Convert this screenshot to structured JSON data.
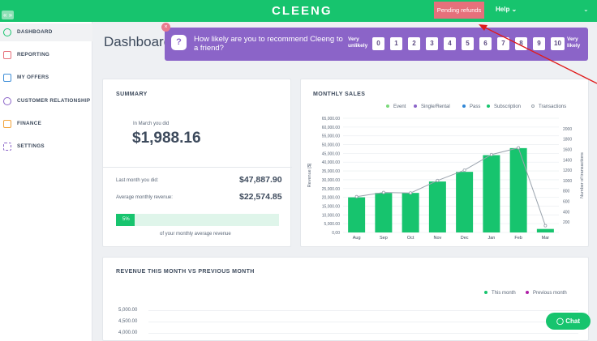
{
  "topbar": {
    "collapse_label": "« »",
    "logo": "CLEENG",
    "pending_label": "Pending refunds",
    "help_label": "Help ⌄",
    "chevron": "⌄"
  },
  "sidebar": {
    "items": [
      {
        "label": "DASHBOARD",
        "icon": "dashboard-icon",
        "color": "#17c46e"
      },
      {
        "label": "REPORTING",
        "icon": "report-icon",
        "color": "#e6707b"
      },
      {
        "label": "MY OFFERS",
        "icon": "offers-icon",
        "color": "#3f8fd8"
      },
      {
        "label": "CUSTOMER RELATIONSHIP",
        "icon": "customers-icon",
        "color": "#8b64c8"
      },
      {
        "label": "FINANCE",
        "icon": "finance-icon",
        "color": "#f2a33a"
      },
      {
        "label": "SETTINGS",
        "icon": "settings-icon",
        "color": "#8b64c8"
      }
    ]
  },
  "page": {
    "title": "Dashboard"
  },
  "nps": {
    "close": "×",
    "q_icon": "?",
    "question": "How likely are you to recommend Cleeng to a friend?",
    "very_unlikely": "Very unlikely",
    "very_likely": "Very likely",
    "scores": [
      "0",
      "1",
      "2",
      "3",
      "4",
      "5",
      "6",
      "7",
      "8",
      "9",
      "10"
    ]
  },
  "summary": {
    "title": "SUMMARY",
    "in_month_label": "In March you did",
    "amount": "$1,988.16",
    "last_month_label": "Last month you did:",
    "last_month_value": "$47,887.90",
    "avg_label": "Average monthly revenue:",
    "avg_value": "$22,574.85",
    "progress_label": "5%",
    "progress_value": 0.05,
    "progress_caption": "of your monthly average revenue"
  },
  "monthly": {
    "title": "MONTHLY SALES",
    "legend": [
      {
        "name": "Event",
        "color": "#7bd97b"
      },
      {
        "name": "Single/Rental",
        "color": "#8b64c8"
      },
      {
        "name": "Pass",
        "color": "#2f86d6"
      },
      {
        "name": "Subscription",
        "color": "#17c46e"
      },
      {
        "name": "Transactions",
        "color": "#9aa3ad"
      }
    ]
  },
  "revenue": {
    "title": "REVENUE THIS MONTH VS PREVIOUS MONTH",
    "legend": [
      {
        "name": "This month",
        "color": "#17c46e"
      },
      {
        "name": "Previous month",
        "color": "#b01fa8"
      }
    ],
    "ticks": [
      "5,000.00",
      "4,500.00",
      "4,000.00"
    ]
  },
  "chat": {
    "label": "Chat"
  },
  "chart_data": {
    "type": "bar",
    "categories": [
      "Aug",
      "Sep",
      "Oct",
      "Nov",
      "Dec",
      "Jan",
      "Feb",
      "Mar"
    ],
    "series": [
      {
        "name": "Subscription",
        "values": [
          20000,
          22500,
          22500,
          29000,
          34500,
          44000,
          48000,
          2000
        ]
      },
      {
        "name": "Transactions",
        "values": [
          690,
          770,
          760,
          1000,
          1200,
          1500,
          1630,
          130
        ]
      }
    ],
    "ylabel": "Revenue [$]",
    "y2label": "Number of transactions",
    "ylim": [
      0,
      65000
    ],
    "y2lim": [
      0,
      2200
    ],
    "yticks": [
      "0,00",
      "5,000.00",
      "10,000.00",
      "15,000.00",
      "20,000.00",
      "25,000.00",
      "30,000.00",
      "35,000.00",
      "40,000.00",
      "45,000.00",
      "50,000.00",
      "55,000.00",
      "60,000.00",
      "65,000.00"
    ],
    "y2ticks": [
      "200",
      "400",
      "600",
      "800",
      "1000",
      "1200",
      "1400",
      "1600",
      "1800",
      "2000"
    ],
    "grid": true,
    "legend": "top"
  }
}
